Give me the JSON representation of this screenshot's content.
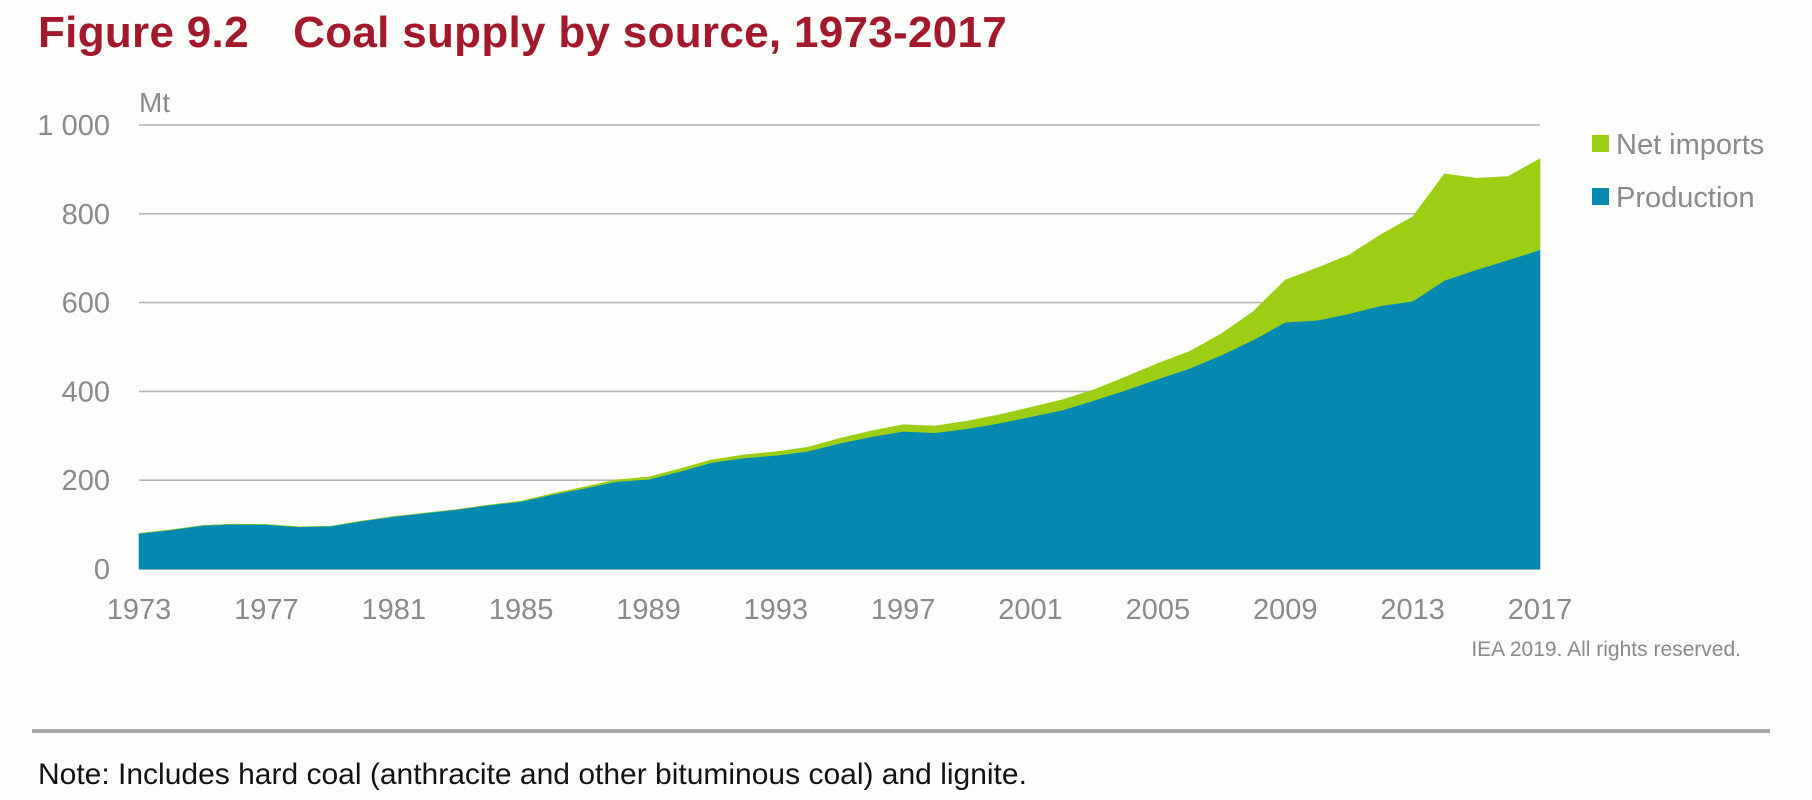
{
  "header": {
    "title": "Figure 9.2 Coal supply by source, 1973-2017"
  },
  "chart_data": {
    "type": "area",
    "stacked": true,
    "x": [
      1973,
      1974,
      1975,
      1976,
      1977,
      1978,
      1979,
      1980,
      1981,
      1982,
      1983,
      1984,
      1985,
      1986,
      1987,
      1988,
      1989,
      1990,
      1991,
      1992,
      1993,
      1994,
      1995,
      1996,
      1997,
      1998,
      1999,
      2000,
      2001,
      2002,
      2003,
      2004,
      2005,
      2006,
      2007,
      2008,
      2009,
      2010,
      2011,
      2012,
      2013,
      2014,
      2015,
      2016,
      2017
    ],
    "xticks": [
      "1973",
      "1977",
      "1981",
      "1985",
      "1989",
      "1993",
      "1997",
      "2001",
      "2005",
      "2009",
      "2013",
      "2017"
    ],
    "yticks": [
      "0",
      "200",
      "400",
      "600",
      "800",
      "1 000"
    ],
    "ylim": [
      0,
      1000
    ],
    "yunit": "Mt",
    "grid": "horizontal",
    "legend_position": "right",
    "series": [
      {
        "name": "Production",
        "color": "#0689b0",
        "values": [
          80,
          88,
          98,
          101,
          100,
          95,
          96,
          108,
          118,
          126,
          134,
          144,
          152,
          168,
          182,
          197,
          202,
          220,
          240,
          250,
          256,
          265,
          283,
          298,
          310,
          307,
          316,
          328,
          343,
          358,
          380,
          403,
          428,
          452,
          482,
          516,
          556,
          560,
          575,
          593,
          603,
          650,
          674,
          696,
          719
        ]
      },
      {
        "name": "Net imports",
        "color": "#9ccf13",
        "values": [
          0,
          0,
          0,
          0,
          0,
          0,
          0,
          0,
          0,
          0,
          0,
          0,
          1,
          2,
          3,
          4,
          5,
          6,
          6,
          7,
          8,
          9,
          11,
          13,
          15,
          15,
          17,
          19,
          21,
          23,
          24,
          30,
          35,
          38,
          48,
          64,
          95,
          118,
          132,
          160,
          190,
          240,
          206,
          188,
          205
        ]
      }
    ],
    "credit": "IEA 2019. All rights reserved."
  },
  "footer": {
    "note": "Note: Includes hard coal (anthracite and other bituminous coal) and lignite."
  }
}
